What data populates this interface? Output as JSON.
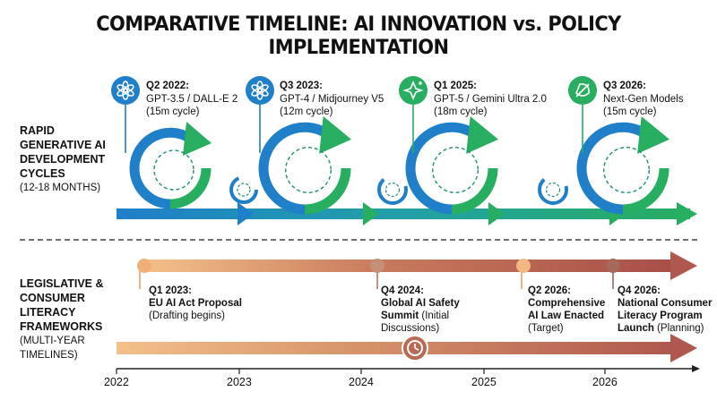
{
  "title": "COMPARATIVE TIMELINE: AI INNOVATION vs. POLICY IMPLEMENTATION",
  "rows": {
    "innovation": {
      "label_lines": [
        "RAPID",
        "GENERATIVE AI",
        "DEVELOPMENT",
        "CYCLES"
      ],
      "sub": "(12-18 MONTHS)"
    },
    "policy": {
      "label_lines": [
        "LEGISLATIVE &",
        "CONSUMER",
        "LITERACY",
        "FRAMEWORKS"
      ],
      "sub_lines": [
        "(MULTI-YEAR",
        "TIMELINES)"
      ]
    }
  },
  "ai_milestones": [
    {
      "period": "Q2 2022:",
      "models": "GPT-3.5 / DALL-E 2",
      "cycle": "(15m cycle)",
      "icon": "openai-icon"
    },
    {
      "period": "Q3 2023:",
      "models": "GPT-4 / Midjourney V5",
      "cycle": "(12m cycle)",
      "icon": "openai-icon"
    },
    {
      "period": "Q1 2025:",
      "models": "GPT-5 / Gemini Ultra 2.0",
      "cycle": "(18m cycle)",
      "icon": "sparkle-icon"
    },
    {
      "period": "Q3 2026:",
      "models": "Next-Gen Models",
      "cycle": "(15m cycle)",
      "icon": "rocket-icon"
    }
  ],
  "policy_milestones": [
    {
      "lines_bold": [
        "Q1 2023:",
        "EU AI Act Proposal"
      ],
      "lines": [
        "(Drafting begins)"
      ]
    },
    {
      "lines_bold": [
        "Q4 2024:",
        "Global AI Safety",
        "Summit"
      ],
      "lines": [
        "(Initial",
        "Discussions)"
      ]
    },
    {
      "lines_bold": [
        "Q2 2026:",
        "Comprehensive",
        "AI Law Enacted"
      ],
      "lines": [
        "(Target)"
      ]
    },
    {
      "lines_bold": [
        "Q4 2026:",
        "National Consumer",
        "Literacy Program",
        "Launch"
      ],
      "lines": [
        "(Planning)"
      ]
    }
  ],
  "axis": {
    "years": [
      "2022",
      "2023",
      "2024",
      "2025",
      "2026"
    ]
  },
  "colors": {
    "blue": "#1f7fc9",
    "green": "#27ae60",
    "policy_light": "#f2b37a",
    "policy_dark": "#a8584b"
  },
  "icons": {
    "clock": "clock-icon"
  }
}
